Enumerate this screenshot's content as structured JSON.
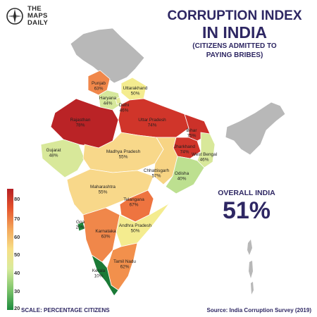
{
  "brand": {
    "line1": "THE",
    "line2": "MAPS",
    "line3": "DAILY"
  },
  "title": {
    "line1": "CORRUPTION INDEX",
    "line2": "IN INDIA",
    "subtitle1": "(CITIZENS ADMITTED TO",
    "subtitle2": "PAYING BRIBES)"
  },
  "overall": {
    "label": "OVERALL INDIA",
    "value": "51%"
  },
  "legend": {
    "scale_label": "SCALE: PERCENTAGE CITIZENS",
    "ticks": [
      "80",
      "70",
      "60",
      "50",
      "40",
      "30",
      "20"
    ]
  },
  "source": "Source: India Corruption Survey (2019)",
  "colors": {
    "title": "#2e2763",
    "low": "#1d8b3e",
    "high": "#b51f24",
    "no_data": "#b8b8b8"
  },
  "states": [
    {
      "name": "Punjab",
      "value": "63%"
    },
    {
      "name": "Uttarakhand",
      "value": "50%"
    },
    {
      "name": "Haryana",
      "value": "44%"
    },
    {
      "name": "Delhi",
      "value": "46%"
    },
    {
      "name": "Rajasthan",
      "value": "78%"
    },
    {
      "name": "Uttar Pradesh",
      "value": "74%"
    },
    {
      "name": "Bihar",
      "value": "75%"
    },
    {
      "name": "Gujarat",
      "value": "48%"
    },
    {
      "name": "Madhya Pradesh",
      "value": "55%"
    },
    {
      "name": "Jharkhand",
      "value": "74%"
    },
    {
      "name": "West Bengal",
      "value": "46%"
    },
    {
      "name": "Chhattisgarh",
      "value": "57%"
    },
    {
      "name": "Odisha",
      "value": "40%"
    },
    {
      "name": "Maharashtra",
      "value": "55%"
    },
    {
      "name": "Telangana",
      "value": "67%"
    },
    {
      "name": "Goa",
      "value": "20%"
    },
    {
      "name": "Karnataka",
      "value": "63%"
    },
    {
      "name": "Andhra Pradesh",
      "value": "50%"
    },
    {
      "name": "Tamil Nadu",
      "value": "62%"
    },
    {
      "name": "Kerala",
      "value": "10%"
    }
  ]
}
